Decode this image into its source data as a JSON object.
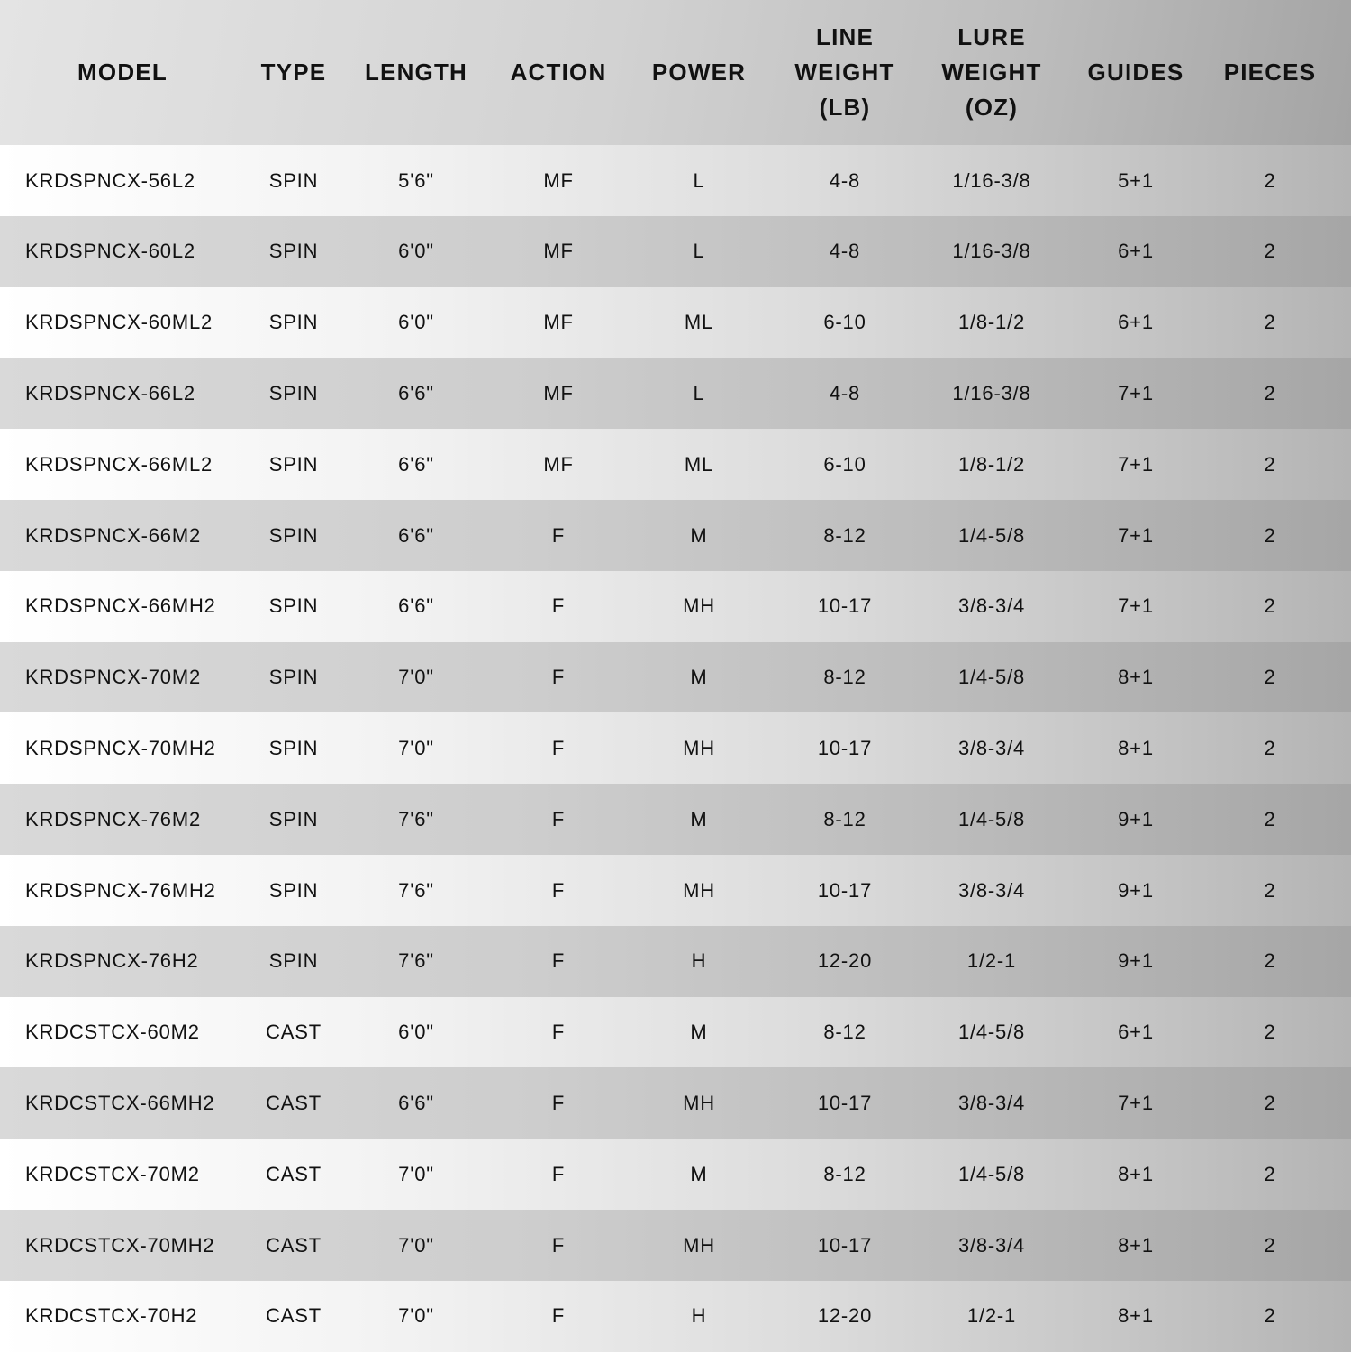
{
  "table": {
    "headers": [
      "MODEL",
      "TYPE",
      "LENGTH",
      "ACTION",
      "POWER",
      "LINE\nWEIGHT\n(LB)",
      "LURE\nWEIGHT\n(OZ)",
      "GUIDES",
      "PIECES"
    ],
    "rows": [
      [
        "KRDSPNCX-56L2",
        "SPIN",
        "5'6\"",
        "MF",
        "L",
        "4-8",
        "1/16-3/8",
        "5+1",
        "2"
      ],
      [
        "KRDSPNCX-60L2",
        "SPIN",
        "6'0\"",
        "MF",
        "L",
        "4-8",
        "1/16-3/8",
        "6+1",
        "2"
      ],
      [
        "KRDSPNCX-60ML2",
        "SPIN",
        "6'0\"",
        "MF",
        "ML",
        "6-10",
        "1/8-1/2",
        "6+1",
        "2"
      ],
      [
        "KRDSPNCX-66L2",
        "SPIN",
        "6'6\"",
        "MF",
        "L",
        "4-8",
        "1/16-3/8",
        "7+1",
        "2"
      ],
      [
        "KRDSPNCX-66ML2",
        "SPIN",
        "6'6\"",
        "MF",
        "ML",
        "6-10",
        "1/8-1/2",
        "7+1",
        "2"
      ],
      [
        "KRDSPNCX-66M2",
        "SPIN",
        "6'6\"",
        "F",
        "M",
        "8-12",
        "1/4-5/8",
        "7+1",
        "2"
      ],
      [
        "KRDSPNCX-66MH2",
        "SPIN",
        "6'6\"",
        "F",
        "MH",
        "10-17",
        "3/8-3/4",
        "7+1",
        "2"
      ],
      [
        "KRDSPNCX-70M2",
        "SPIN",
        "7'0\"",
        "F",
        "M",
        "8-12",
        "1/4-5/8",
        "8+1",
        "2"
      ],
      [
        "KRDSPNCX-70MH2",
        "SPIN",
        "7'0\"",
        "F",
        "MH",
        "10-17",
        "3/8-3/4",
        "8+1",
        "2"
      ],
      [
        "KRDSPNCX-76M2",
        "SPIN",
        "7'6\"",
        "F",
        "M",
        "8-12",
        "1/4-5/8",
        "9+1",
        "2"
      ],
      [
        "KRDSPNCX-76MH2",
        "SPIN",
        "7'6\"",
        "F",
        "MH",
        "10-17",
        "3/8-3/4",
        "9+1",
        "2"
      ],
      [
        "KRDSPNCX-76H2",
        "SPIN",
        "7'6\"",
        "F",
        "H",
        "12-20",
        "1/2-1",
        "9+1",
        "2"
      ],
      [
        "KRDCSTCX-60M2",
        "CAST",
        "6'0\"",
        "F",
        "M",
        "8-12",
        "1/4-5/8",
        "6+1",
        "2"
      ],
      [
        "KRDCSTCX-66MH2",
        "CAST",
        "6'6\"",
        "F",
        "MH",
        "10-17",
        "3/8-3/4",
        "7+1",
        "2"
      ],
      [
        "KRDCSTCX-70M2",
        "CAST",
        "7'0\"",
        "F",
        "M",
        "8-12",
        "1/4-5/8",
        "8+1",
        "2"
      ],
      [
        "KRDCSTCX-70MH2",
        "CAST",
        "7'0\"",
        "F",
        "MH",
        "10-17",
        "3/8-3/4",
        "8+1",
        "2"
      ],
      [
        "KRDCSTCX-70H2",
        "CAST",
        "7'0\"",
        "F",
        "H",
        "12-20",
        "1/2-1",
        "8+1",
        "2"
      ]
    ]
  }
}
